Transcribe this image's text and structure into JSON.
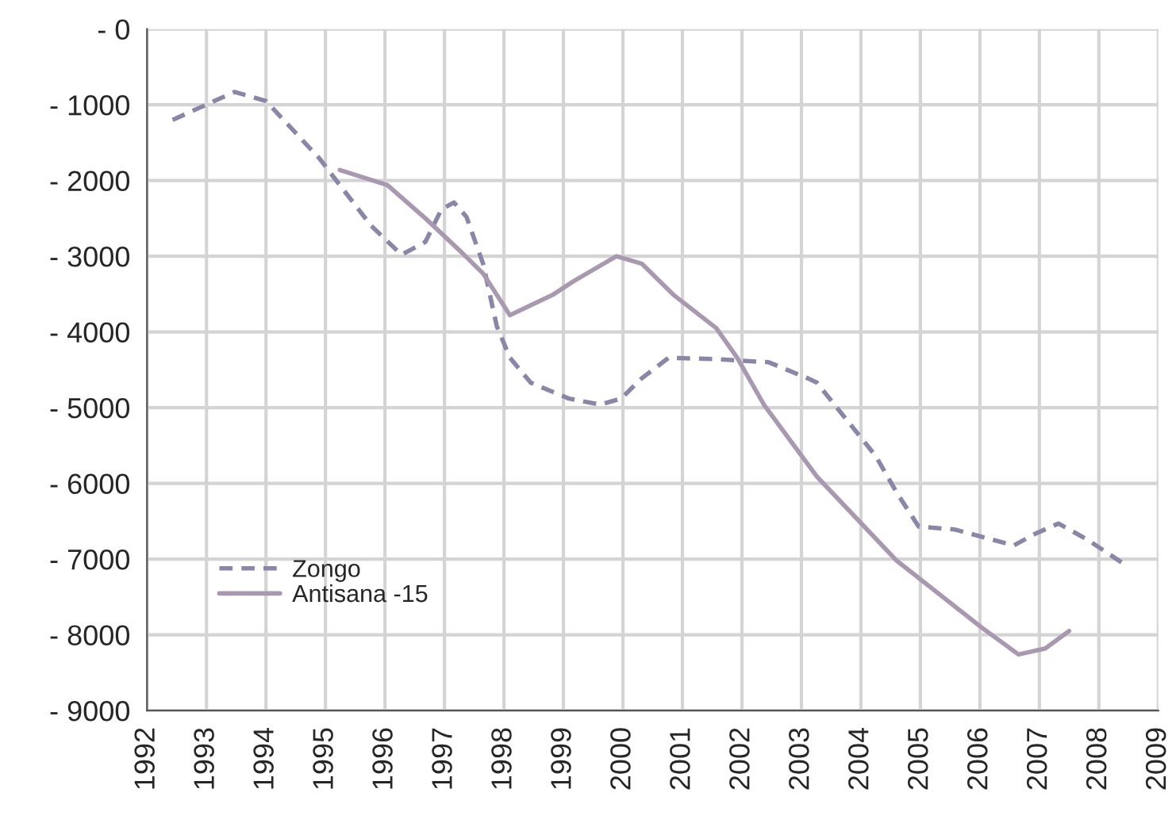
{
  "chart_data": {
    "type": "line",
    "xlim": [
      1992,
      2009
    ],
    "xticks": [
      1992,
      1993,
      1994,
      1995,
      1996,
      1997,
      1998,
      1999,
      2000,
      2001,
      2002,
      2003,
      2004,
      2005,
      2006,
      2007,
      2008,
      2009
    ],
    "ylim": [
      -9000,
      0
    ],
    "yticks": [
      {
        "value": 0,
        "label": "- 0"
      },
      {
        "value": -1000,
        "label": "- 1000"
      },
      {
        "value": -2000,
        "label": "- 2000"
      },
      {
        "value": -3000,
        "label": "- 3000"
      },
      {
        "value": -4000,
        "label": "- 4000"
      },
      {
        "value": -5000,
        "label": "- 5000"
      },
      {
        "value": -6000,
        "label": "- 6000"
      },
      {
        "value": -7000,
        "label": "- 7000"
      },
      {
        "value": -8000,
        "label": "- 8000"
      },
      {
        "value": -9000,
        "label": "- 9000"
      }
    ],
    "grid": true,
    "legend": "bottom left",
    "series": [
      {
        "name": "Zongo",
        "color": "#8a86a8",
        "line_style": "dashed",
        "x": [
          1992.43,
          1993.47,
          1994.0,
          1994.9,
          1995.24,
          1995.77,
          1996.28,
          1996.68,
          1996.95,
          1997.16,
          1997.37,
          1997.65,
          1997.88,
          1998.1,
          1998.45,
          1999.09,
          1999.62,
          1999.97,
          2000.32,
          2000.77,
          2001.57,
          2002.45,
          2003.1,
          2003.26,
          2004.25,
          2004.6,
          2004.97,
          2005.58,
          2006.57,
          2006.92,
          2007.32,
          2007.8,
          2008.47
        ],
        "values": [
          -1200,
          -830,
          -950,
          -1710,
          -2060,
          -2600,
          -2980,
          -2810,
          -2380,
          -2290,
          -2480,
          -3100,
          -3925,
          -4340,
          -4670,
          -4880,
          -4960,
          -4880,
          -4610,
          -4340,
          -4360,
          -4400,
          -4610,
          -4670,
          -5640,
          -6120,
          -6570,
          -6610,
          -6820,
          -6670,
          -6530,
          -6740,
          -7090
        ]
      },
      {
        "name": "Antisana -15",
        "color": "#a898b0",
        "line_style": "solid",
        "x": [
          1995.24,
          1996.04,
          1996.68,
          1997.29,
          1997.65,
          1998.1,
          1998.82,
          1999.17,
          1999.89,
          2000.32,
          2000.85,
          2001.57,
          2001.92,
          2002.37,
          2003.26,
          2004.6,
          2006.04,
          2006.65,
          2007.1,
          2007.5
        ],
        "values": [
          -1860,
          -2060,
          -2500,
          -2950,
          -3230,
          -3780,
          -3510,
          -3330,
          -3000,
          -3100,
          -3510,
          -3950,
          -4340,
          -4960,
          -5910,
          -7020,
          -7910,
          -8260,
          -8180,
          -7950
        ]
      }
    ]
  }
}
